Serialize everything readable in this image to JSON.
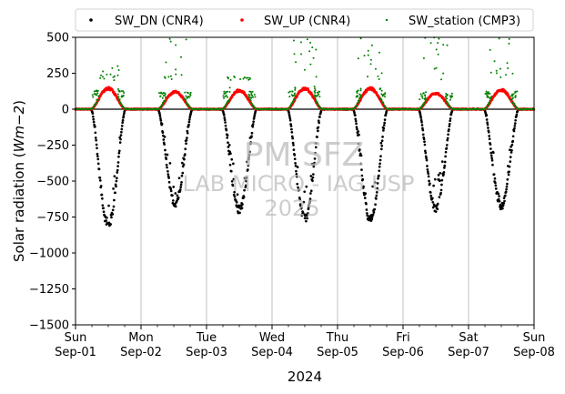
{
  "chart_data": {
    "type": "scatter",
    "xlabel": "2024",
    "ylabel_text": "Solar radiation (",
    "ylabel_unit": "Wm−2",
    "ylabel_close": ")",
    "ylim": [
      -1500,
      500
    ],
    "yticks": [
      500,
      250,
      0,
      -250,
      -500,
      -750,
      -1000,
      -1250,
      -1500
    ],
    "ytick_labels": [
      "500",
      "250",
      "0",
      "−250",
      "−500",
      "−750",
      "−1000",
      "−1250",
      "−1500"
    ],
    "xlim": [
      "2024-09-01",
      "2024-09-08"
    ],
    "xticks": [
      {
        "day": 0,
        "weekday": "Sun",
        "date": "Sep-01"
      },
      {
        "day": 1,
        "weekday": "Mon",
        "date": "Sep-02"
      },
      {
        "day": 2,
        "weekday": "Tue",
        "date": "Sep-03"
      },
      {
        "day": 3,
        "weekday": "Wed",
        "date": "Sep-04"
      },
      {
        "day": 4,
        "weekday": "Thu",
        "date": "Sep-05"
      },
      {
        "day": 5,
        "weekday": "Fri",
        "date": "Sep-06"
      },
      {
        "day": 6,
        "weekday": "Sat",
        "date": "Sep-07"
      },
      {
        "day": 7,
        "weekday": "Sun",
        "date": "Sep-08"
      }
    ],
    "grid": "vertical-major",
    "zero_line": true,
    "legend": {
      "placement": "top",
      "entries": [
        {
          "label": "SW_DN (CNR4)",
          "color": "#000000"
        },
        {
          "label": "SW_UP (CNR4)",
          "color": "#ff0000"
        },
        {
          "label": "SW_station (CMP3)",
          "color": "#008000"
        }
      ]
    },
    "series": [
      {
        "name": "SW_DN (CNR4)",
        "color": "#000000",
        "daily_minimum": [
          {
            "date": "2024-09-01",
            "x_hours": 12.0,
            "y": -840
          },
          {
            "date": "2024-09-02",
            "x_hours": 12.5,
            "y": -680
          },
          {
            "date": "2024-09-03",
            "x_hours": 12.0,
            "y": -730
          },
          {
            "date": "2024-09-04",
            "x_hours": 12.0,
            "y": -790
          },
          {
            "date": "2024-09-05",
            "x_hours": 12.0,
            "y": -800
          },
          {
            "date": "2024-09-06",
            "x_hours": 12.0,
            "y": -720
          },
          {
            "date": "2024-09-07",
            "x_hours": 12.0,
            "y": -700
          }
        ]
      },
      {
        "name": "SW_UP (CNR4)",
        "color": "#ff0000",
        "daily_maximum": [
          {
            "date": "2024-09-01",
            "x_hours": 12.0,
            "y": 150
          },
          {
            "date": "2024-09-02",
            "x_hours": 12.0,
            "y": 125
          },
          {
            "date": "2024-09-03",
            "x_hours": 12.0,
            "y": 135
          },
          {
            "date": "2024-09-04",
            "x_hours": 12.0,
            "y": 150
          },
          {
            "date": "2024-09-05",
            "x_hours": 12.0,
            "y": 150
          },
          {
            "date": "2024-09-06",
            "x_hours": 12.0,
            "y": 115
          },
          {
            "date": "2024-09-07",
            "x_hours": 12.0,
            "y": 140
          }
        ]
      },
      {
        "name": "SW_station (CMP3)",
        "color": "#008000",
        "daily_peak_points": [
          {
            "date": "2024-09-01",
            "y": 300
          },
          {
            "date": "2024-09-02",
            "y": 500
          },
          {
            "date": "2024-09-03",
            "y": 230
          },
          {
            "date": "2024-09-04",
            "y": 500
          },
          {
            "date": "2024-09-05",
            "y": 500
          },
          {
            "date": "2024-09-06",
            "y": 500
          },
          {
            "date": "2024-09-07",
            "y": 500
          }
        ]
      }
    ],
    "watermark": [
      "PM SFZ",
      "LAB MICRO - IAG USP",
      "2025"
    ]
  }
}
